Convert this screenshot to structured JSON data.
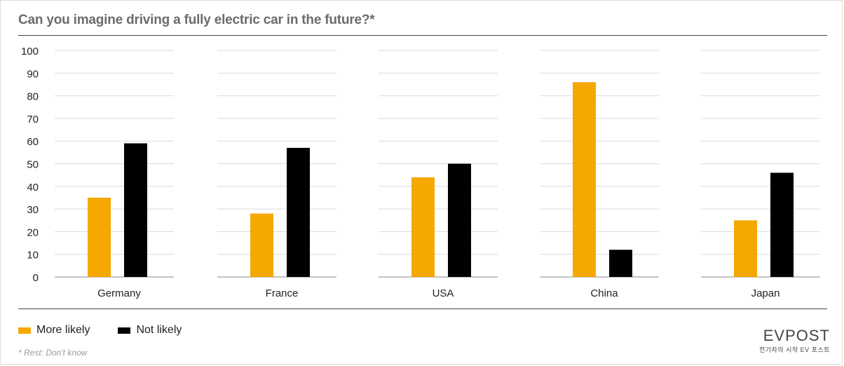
{
  "chart_data": {
    "type": "bar",
    "title": "Can you imagine driving a fully electric car in the future?*",
    "categories": [
      "Germany",
      "France",
      "USA",
      "China",
      "Japan"
    ],
    "series": [
      {
        "name": "More likely",
        "color": "#f5a800",
        "values": [
          35,
          28,
          44,
          86,
          25
        ]
      },
      {
        "name": "Not likely",
        "color": "#000000",
        "values": [
          59,
          57,
          50,
          12,
          46
        ]
      }
    ],
    "ylim": [
      0,
      100
    ],
    "yticks": [
      "0",
      "10",
      "20",
      "30",
      "40",
      "50",
      "60",
      "70",
      "80",
      "90",
      "100"
    ],
    "grid": true,
    "legend_position": "bottom-left",
    "footnote": "* Rest: Don't know"
  },
  "brand": {
    "logo": "EVPOST",
    "tagline": "전기차의 시작 EV 포스트"
  }
}
